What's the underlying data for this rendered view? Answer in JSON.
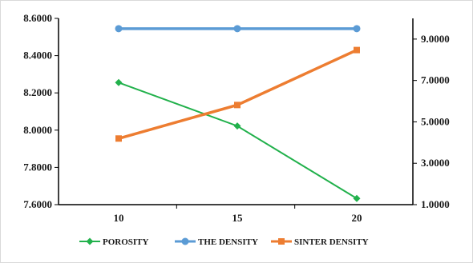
{
  "chart_data": {
    "type": "line",
    "categories": [
      "10",
      "15",
      "20"
    ],
    "y_left": {
      "min": 7.6,
      "max": 8.6,
      "ticks": [
        "7.6000",
        "7.8000",
        "8.0000",
        "8.2000",
        "8.4000",
        "8.6000"
      ]
    },
    "y_right": {
      "min": 1.0,
      "max": 10.0,
      "ticks": [
        "1.0000",
        "3.0000",
        "5.0000",
        "7.0000",
        "9.0000"
      ]
    },
    "series": [
      {
        "name": "POROSITY",
        "axis": "right",
        "color": "#22b14c",
        "marker": "diamond",
        "values": [
          6.9,
          4.8,
          1.3
        ]
      },
      {
        "name": "THE DENSITY",
        "axis": "left",
        "color": "#5b9bd5",
        "marker": "circle",
        "values": [
          8.545,
          8.545,
          8.545
        ]
      },
      {
        "name": "SINTER DENSITY",
        "axis": "left",
        "color": "#ed7d31",
        "marker": "square",
        "values": [
          7.955,
          8.135,
          8.43
        ]
      }
    ],
    "legend_position": "bottom",
    "grid": false
  }
}
